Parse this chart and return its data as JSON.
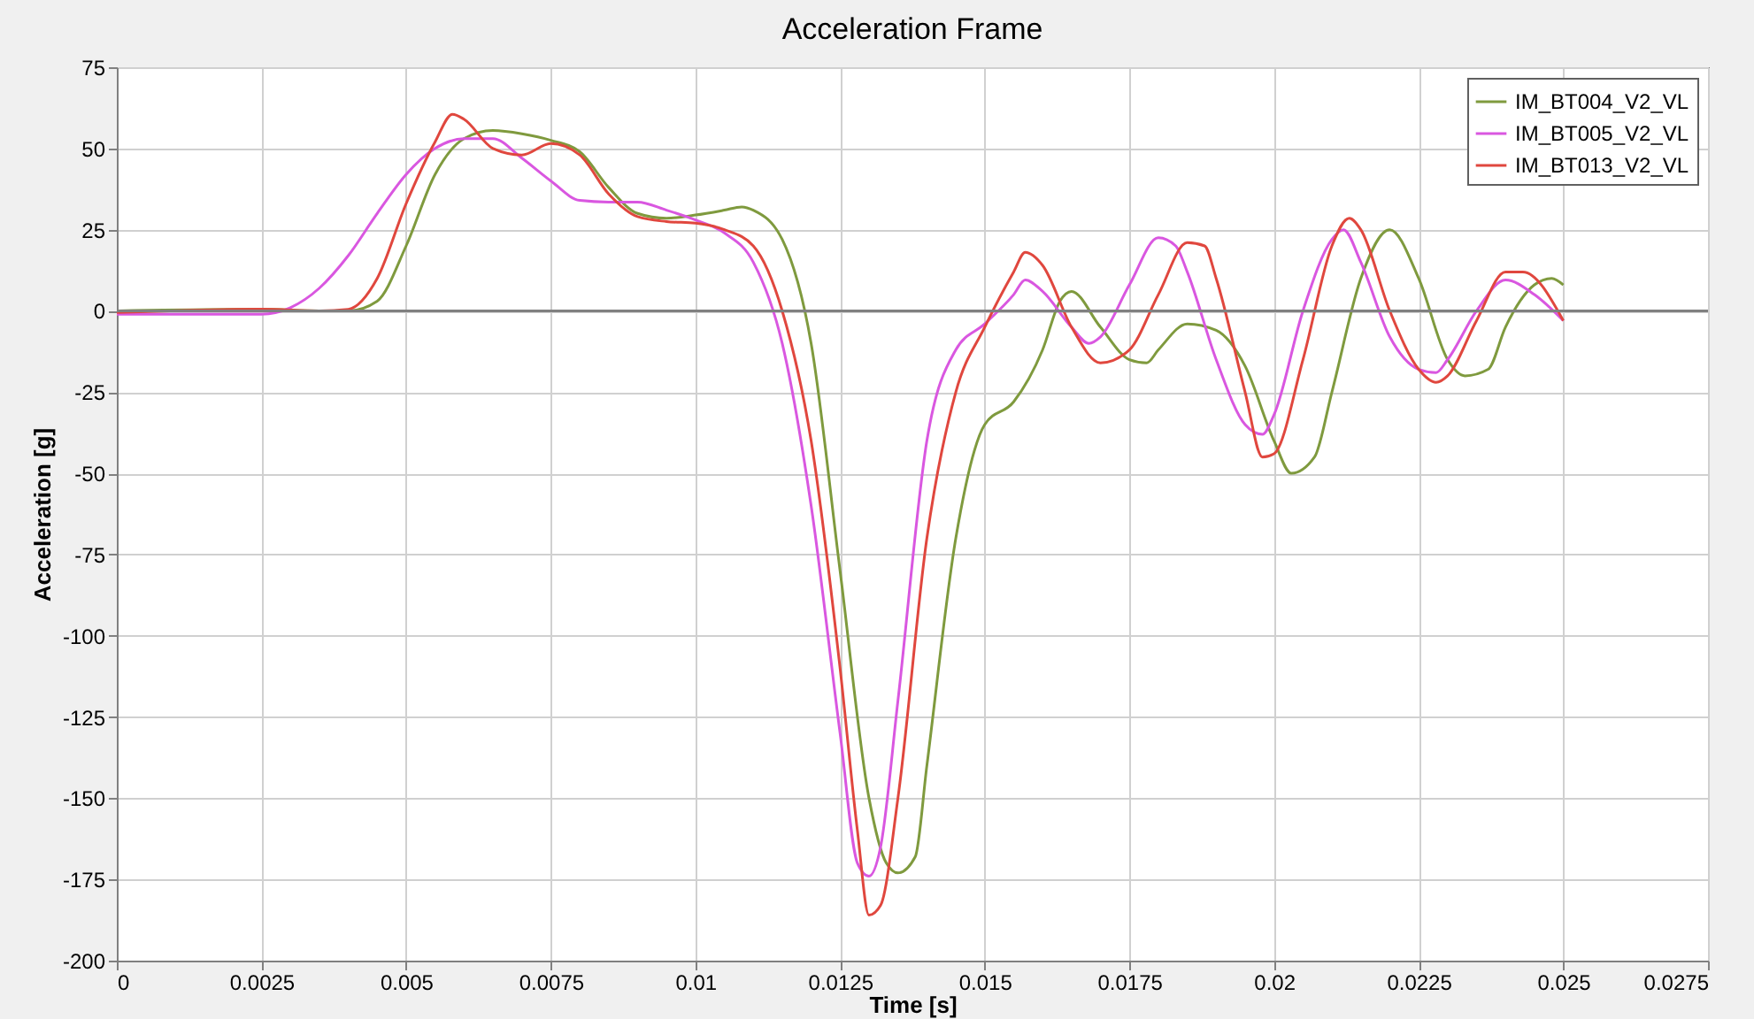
{
  "chart_data": {
    "type": "line",
    "title": "Acceleration Frame",
    "xlabel": "Time [s]",
    "ylabel": "Acceleration [g]",
    "xlim": [
      0,
      0.0275
    ],
    "xticks": [
      0,
      0.0025,
      0.005,
      0.0075,
      0.01,
      0.0125,
      0.015,
      0.0175,
      0.02,
      0.0225,
      0.025,
      0.0275
    ],
    "ylim": [
      -200,
      75
    ],
    "yticks": [
      -200,
      -175,
      -150,
      -125,
      -100,
      -75,
      -50,
      -25,
      0,
      25,
      50,
      75
    ],
    "grid": true,
    "legend": "top right",
    "line_style": "solid",
    "marker": "none",
    "ref_lines": [
      {
        "axis": "y",
        "value": 0,
        "color": "#808080"
      }
    ],
    "series": [
      {
        "name": "IM_BT004_V2_VL",
        "color": "#7f9a3e",
        "x": [
          0,
          0.0025,
          0.0035,
          0.004,
          0.0045,
          0.005,
          0.0055,
          0.006,
          0.0065,
          0.007,
          0.0075,
          0.008,
          0.0085,
          0.009,
          0.0095,
          0.01,
          0.0105,
          0.0108,
          0.011,
          0.0115,
          0.012,
          0.0125,
          0.013,
          0.0133,
          0.0135,
          0.0138,
          0.014,
          0.0145,
          0.015,
          0.0155,
          0.016,
          0.0163,
          0.0165,
          0.017,
          0.0175,
          0.0178,
          0.018,
          0.0185,
          0.019,
          0.0195,
          0.02,
          0.0203,
          0.0207,
          0.021,
          0.0215,
          0.022,
          0.0225,
          0.023,
          0.0233,
          0.0237,
          0.024,
          0.0245,
          0.0248,
          0.025
        ],
        "values": [
          0,
          0.5,
          0,
          0,
          3,
          20,
          42,
          53,
          55.5,
          54.5,
          52.5,
          49,
          38,
          30,
          28.5,
          29.5,
          31,
          32,
          31,
          22,
          -10,
          -80,
          -150,
          -170,
          -173,
          -168,
          -140,
          -70,
          -35,
          -28,
          -12,
          3,
          6,
          -5,
          -15,
          -16,
          -12,
          -4,
          -6,
          -17,
          -40,
          -50,
          -45,
          -25,
          10,
          25,
          10,
          -15,
          -20,
          -18,
          -5,
          8,
          10,
          8
        ]
      },
      {
        "name": "IM_BT005_V2_VL",
        "color": "#d957e0",
        "x": [
          0,
          0.0025,
          0.003,
          0.0035,
          0.004,
          0.0045,
          0.005,
          0.0055,
          0.006,
          0.0065,
          0.007,
          0.0075,
          0.008,
          0.0085,
          0.009,
          0.0095,
          0.01,
          0.0105,
          0.011,
          0.0115,
          0.012,
          0.0125,
          0.0128,
          0.013,
          0.0132,
          0.0135,
          0.014,
          0.0145,
          0.015,
          0.0155,
          0.0157,
          0.016,
          0.0165,
          0.0168,
          0.017,
          0.0175,
          0.018,
          0.0183,
          0.0185,
          0.019,
          0.0195,
          0.0198,
          0.02,
          0.0205,
          0.021,
          0.0212,
          0.0215,
          0.022,
          0.0225,
          0.0228,
          0.023,
          0.0235,
          0.024,
          0.0245,
          0.025
        ],
        "values": [
          -1,
          -1,
          1,
          7,
          17,
          30,
          42,
          50,
          53,
          53,
          47,
          40,
          34,
          33.5,
          33.5,
          31,
          28,
          24,
          15,
          -10,
          -60,
          -130,
          -170,
          -174,
          -165,
          -120,
          -40,
          -12,
          -4,
          5,
          9.5,
          6,
          -5,
          -10,
          -8,
          8,
          22.5,
          20,
          12,
          -15,
          -35,
          -38,
          -32,
          0,
          22,
          25,
          15,
          -8,
          -18,
          -19,
          -15,
          0,
          9.5,
          5,
          -3
        ]
      },
      {
        "name": "IM_BT013_V2_VL",
        "color": "#e0473e",
        "x": [
          0,
          0.0025,
          0.0035,
          0.004,
          0.0045,
          0.005,
          0.0055,
          0.0058,
          0.006,
          0.0065,
          0.007,
          0.0075,
          0.008,
          0.0085,
          0.009,
          0.0095,
          0.01,
          0.0105,
          0.011,
          0.0115,
          0.012,
          0.0125,
          0.0128,
          0.013,
          0.0132,
          0.0135,
          0.014,
          0.0145,
          0.015,
          0.0155,
          0.0157,
          0.016,
          0.0165,
          0.017,
          0.0175,
          0.018,
          0.0185,
          0.0188,
          0.019,
          0.0195,
          0.0198,
          0.02,
          0.0205,
          0.021,
          0.0213,
          0.0215,
          0.022,
          0.0225,
          0.0228,
          0.023,
          0.0235,
          0.024,
          0.0243,
          0.025
        ],
        "values": [
          -0.5,
          0.5,
          0,
          0.5,
          10,
          33,
          52,
          60.5,
          59,
          50,
          48,
          51.5,
          48,
          36,
          29,
          27.5,
          27,
          25,
          20,
          0,
          -40,
          -110,
          -160,
          -186,
          -183,
          -150,
          -70,
          -25,
          -5,
          12,
          18,
          14,
          -5,
          -16,
          -12,
          5,
          21,
          20,
          10,
          -25,
          -45,
          -44,
          -15,
          20,
          28.5,
          25,
          0,
          -18,
          -22,
          -20,
          -3,
          12,
          12,
          -3
        ]
      }
    ]
  }
}
